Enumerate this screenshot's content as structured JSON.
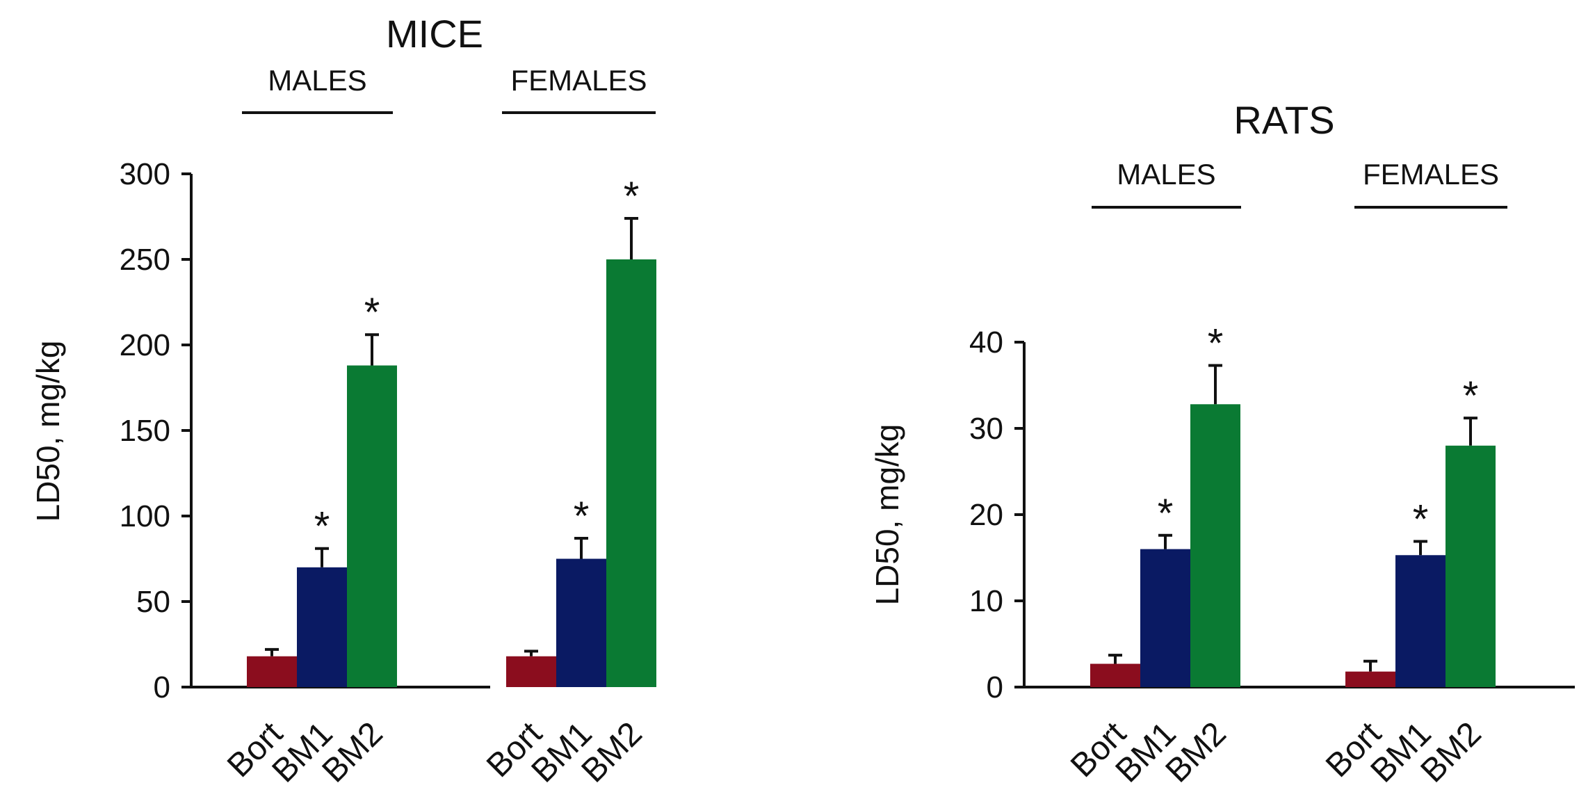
{
  "chart_data": [
    {
      "type": "bar",
      "title": "MICE",
      "ylabel": "LD50, mg/kg",
      "xlabel": "",
      "ylim": [
        0,
        300
      ],
      "yticks": [
        0,
        50,
        100,
        150,
        200,
        250,
        300
      ],
      "grid": false,
      "categories": [
        "Bort",
        "BM1",
        "BM2"
      ],
      "colors": {
        "Bort": "#8b0d1e",
        "BM1": "#0a1a63",
        "BM2": "#0a7a33"
      },
      "groups": [
        {
          "label": "MALES",
          "bars": [
            {
              "category": "Bort",
              "value": 18,
              "error": 4,
              "significant": false
            },
            {
              "category": "BM1",
              "value": 70,
              "error": 11,
              "significant": true
            },
            {
              "category": "BM2",
              "value": 188,
              "error": 18,
              "significant": true
            }
          ]
        },
        {
          "label": "FEMALES",
          "bars": [
            {
              "category": "Bort",
              "value": 18,
              "error": 3,
              "significant": false
            },
            {
              "category": "BM1",
              "value": 75,
              "error": 12,
              "significant": true
            },
            {
              "category": "BM2",
              "value": 250,
              "error": 24,
              "significant": true
            }
          ]
        }
      ],
      "significance_marker": "*"
    },
    {
      "type": "bar",
      "title": "RATS",
      "ylabel": "LD50, mg/kg",
      "xlabel": "",
      "ylim": [
        0,
        40
      ],
      "yticks": [
        0,
        10,
        20,
        30,
        40
      ],
      "grid": false,
      "categories": [
        "Bort",
        "BM1",
        "BM2"
      ],
      "colors": {
        "Bort": "#8b0d1e",
        "BM1": "#0a1a63",
        "BM2": "#0a7a33"
      },
      "groups": [
        {
          "label": "MALES",
          "bars": [
            {
              "category": "Bort",
              "value": 2.7,
              "error": 1.0,
              "significant": false
            },
            {
              "category": "BM1",
              "value": 16.0,
              "error": 1.6,
              "significant": true
            },
            {
              "category": "BM2",
              "value": 32.8,
              "error": 4.5,
              "significant": true
            }
          ]
        },
        {
          "label": "FEMALES",
          "bars": [
            {
              "category": "Bort",
              "value": 1.8,
              "error": 1.2,
              "significant": false
            },
            {
              "category": "BM1",
              "value": 15.3,
              "error": 1.6,
              "significant": true
            },
            {
              "category": "BM2",
              "value": 28.0,
              "error": 3.2,
              "significant": true
            }
          ]
        }
      ],
      "significance_marker": "*"
    }
  ]
}
